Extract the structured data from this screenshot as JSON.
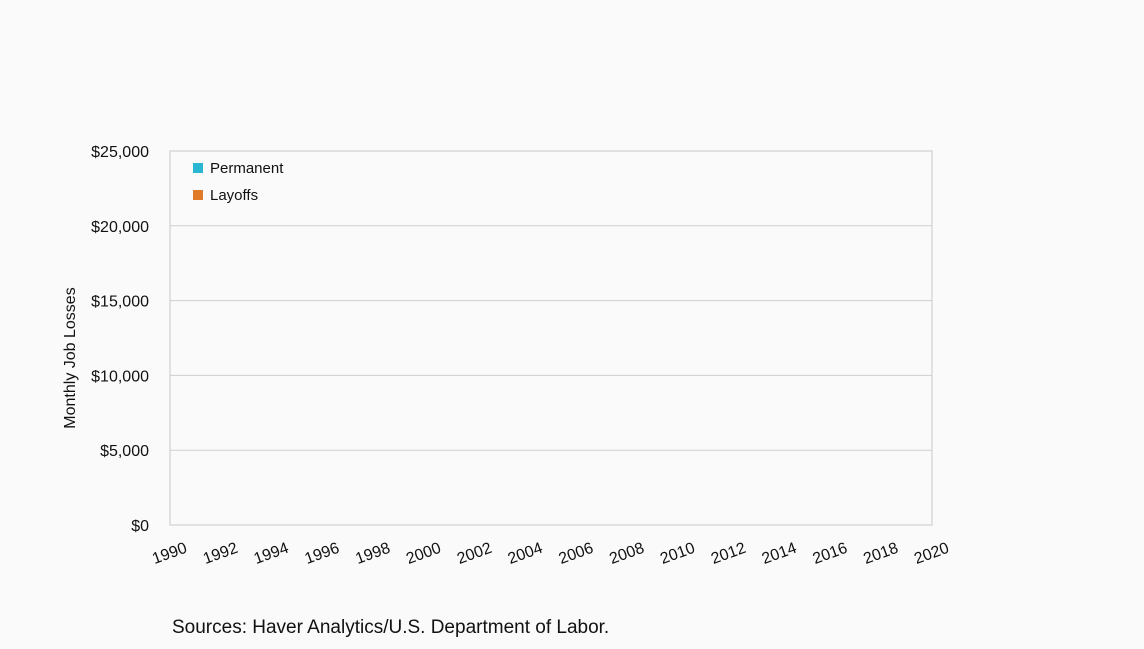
{
  "chart_data": {
    "type": "bar",
    "title": "",
    "xlabel": "",
    "ylabel": "Monthly Job Losses",
    "x_ticks": [
      "1990",
      "1992",
      "1994",
      "1996",
      "1998",
      "2000",
      "2002",
      "2004",
      "2006",
      "2008",
      "2010",
      "2012",
      "2014",
      "2016",
      "2018",
      "2020"
    ],
    "xlim": [
      1990,
      2020
    ],
    "y_ticks": [
      "$0",
      "$5,000",
      "$10,000",
      "$15,000",
      "$20,000",
      "$25,000"
    ],
    "y_tick_values": [
      0,
      5000,
      10000,
      15000,
      20000,
      25000
    ],
    "ylim": [
      0,
      25000
    ],
    "grid": true,
    "legend_placement": "top-left",
    "series": [
      {
        "name": "Permanent",
        "color": "#29b6d1",
        "values": []
      },
      {
        "name": "Layoffs",
        "color": "#e07b2a",
        "values": []
      }
    ]
  },
  "footer": {
    "source": "Sources: Haver Analytics/U.S. Department of Labor."
  }
}
